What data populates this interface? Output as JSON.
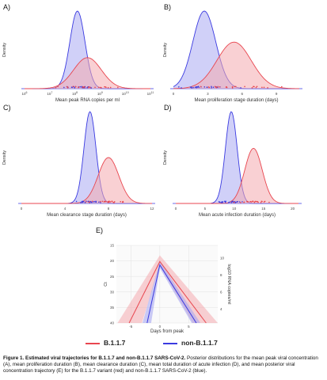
{
  "figure": {
    "colors": {
      "red": "#e8464f",
      "red_fill": "#f4a9ae",
      "blue": "#3a3ae0",
      "blue_fill": "#a9a9f2"
    },
    "legend": [
      {
        "name": "B.1.1.7",
        "color": "#e8464f"
      },
      {
        "name": "non-B.1.1.7",
        "color": "#3a3ae0"
      }
    ],
    "caption": {
      "title": "Figure 1. Estimated viral trajectories for B.1.1.7 and non-B.1.1.7 SARS-CoV-2.",
      "body": " Posterior distributions for the mean peak viral concentration (A), mean proliferation duration (B), mean clearance duration (C), mean total duration of acute infection (D), and mean posterior viral concentration trajectory (E) for the B.1.1.7 variant (red) and non-B.1.1.7 SARS-CoV-2 (blue)."
    }
  },
  "chart_data": [
    {
      "type": "area",
      "panel": "A)",
      "xlabel": "Mean peak RNA copies per ml",
      "ylabel": "Density",
      "x_scale": "log10",
      "xlim": [
        6,
        11
      ],
      "xticks": [
        {
          "v": 6,
          "base": "10",
          "exp": "6"
        },
        {
          "v": 7,
          "base": "10",
          "exp": "7"
        },
        {
          "v": 8,
          "base": "10",
          "exp": "8"
        },
        {
          "v": 9,
          "base": "10",
          "exp": "9"
        },
        {
          "v": 10,
          "base": "10",
          "exp": "10"
        },
        {
          "v": 11,
          "base": "10",
          "exp": "11"
        }
      ],
      "series": [
        {
          "name": "non-B.1.1.7",
          "color": "#3a3ae0",
          "mean": 8.1,
          "sd": 0.3,
          "height": 1.0
        },
        {
          "name": "B.1.1.7",
          "color": "#e8464f",
          "mean": 8.5,
          "sd": 0.55,
          "height": 0.4
        }
      ]
    },
    {
      "type": "area",
      "panel": "B)",
      "xlabel": "Mean proliferation stage duration (days)",
      "ylabel": "Density",
      "xlim": [
        0,
        11
      ],
      "xticks": [
        {
          "v": 0,
          "t": "0"
        },
        {
          "v": 3,
          "t": "3"
        },
        {
          "v": 6,
          "t": "6"
        },
        {
          "v": 9,
          "t": "9"
        }
      ],
      "series": [
        {
          "name": "non-B.1.1.7",
          "color": "#3a3ae0",
          "mean": 2.7,
          "sd": 1.0,
          "height": 1.0
        },
        {
          "name": "B.1.1.7",
          "color": "#e8464f",
          "mean": 5.3,
          "sd": 1.5,
          "height": 0.6
        }
      ]
    },
    {
      "type": "area",
      "panel": "C)",
      "xlabel": "Mean clearance stage duration (days)",
      "ylabel": "Density",
      "xlim": [
        0,
        12
      ],
      "xticks": [
        {
          "v": 0,
          "t": "0"
        },
        {
          "v": 4,
          "t": "4"
        },
        {
          "v": 8,
          "t": "8"
        },
        {
          "v": 12,
          "t": "12"
        }
      ],
      "series": [
        {
          "name": "non-B.1.1.7",
          "color": "#3a3ae0",
          "mean": 6.3,
          "sd": 0.55,
          "height": 1.0
        },
        {
          "name": "B.1.1.7",
          "color": "#e8464f",
          "mean": 8.0,
          "sd": 0.95,
          "height": 0.5
        }
      ]
    },
    {
      "type": "area",
      "panel": "D)",
      "xlabel": "Mean acute infection duration (days)",
      "ylabel": "Density",
      "xlim": [
        0,
        21
      ],
      "xticks": [
        {
          "v": 0,
          "t": "0"
        },
        {
          "v": 5,
          "t": "5"
        },
        {
          "v": 10,
          "t": "10"
        },
        {
          "v": 15,
          "t": "15"
        },
        {
          "v": 20,
          "t": "20"
        }
      ],
      "series": [
        {
          "name": "non-B.1.1.7",
          "color": "#3a3ae0",
          "mean": 9.5,
          "sd": 1.0,
          "height": 1.0
        },
        {
          "name": "B.1.1.7",
          "color": "#e8464f",
          "mean": 13.3,
          "sd": 1.5,
          "height": 0.6
        }
      ]
    },
    {
      "type": "line",
      "panel": "E)",
      "xlabel": "Days from peak",
      "ylabel": "Ct",
      "ylabel_right": "log10 RNA copies/ml",
      "xlim": [
        -7.5,
        10
      ],
      "ylim": [
        15,
        40
      ],
      "y_inverted": true,
      "xticks": [
        {
          "v": -5,
          "t": "-5"
        },
        {
          "v": 0,
          "t": "0"
        },
        {
          "v": 5,
          "t": "5"
        }
      ],
      "yticks": [
        {
          "v": 15,
          "t": "15"
        },
        {
          "v": 20,
          "t": "20"
        },
        {
          "v": 25,
          "t": "25"
        },
        {
          "v": 30,
          "t": "30"
        },
        {
          "v": 35,
          "t": "35"
        },
        {
          "v": 40,
          "t": "40"
        }
      ],
      "y2ticks": [
        {
          "ct": 19,
          "t": "10"
        },
        {
          "ct": 24.5,
          "t": "8"
        },
        {
          "ct": 30,
          "t": "6"
        },
        {
          "ct": 35.5,
          "t": "4"
        }
      ],
      "series": [
        {
          "name": "B.1.1.7",
          "color": "#e8464f",
          "points": [
            [
              -5.3,
              40
            ],
            [
              0,
              20.2
            ],
            [
              8.0,
              40
            ]
          ],
          "band_upper": [
            [
              -7.3,
              40
            ],
            [
              0,
              18.2
            ],
            [
              10,
              40
            ]
          ],
          "band_lower": [
            [
              -3.1,
              40
            ],
            [
              0,
              21.5
            ],
            [
              5.7,
              40
            ]
          ]
        },
        {
          "name": "non-B.1.1.7",
          "color": "#3a3ae0",
          "points": [
            [
              -2.2,
              40
            ],
            [
              0,
              21.3
            ],
            [
              6.3,
              40
            ]
          ],
          "band_upper": [
            [
              -3.0,
              40
            ],
            [
              0,
              20.1
            ],
            [
              7.0,
              40
            ]
          ],
          "band_lower": [
            [
              -1.5,
              40
            ],
            [
              0,
              22.3
            ],
            [
              5.5,
              40
            ]
          ]
        }
      ]
    }
  ]
}
